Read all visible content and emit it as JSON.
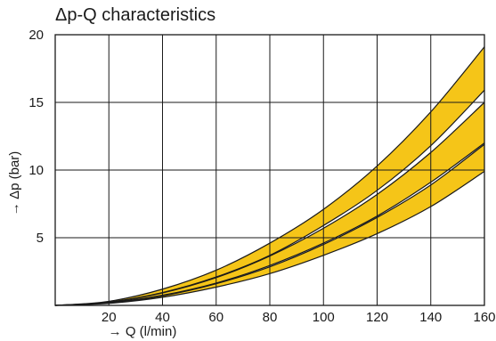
{
  "chart_data": {
    "type": "area",
    "title": "Δp-Q characteristics",
    "xlabel": "→ Q (l/min)",
    "ylabel": "→ Δp (bar)",
    "xlim": [
      0,
      160
    ],
    "ylim": [
      0,
      20
    ],
    "x_ticks": [
      "20",
      "40",
      "60",
      "80",
      "100",
      "120",
      "140",
      "160"
    ],
    "y_ticks": [
      "5",
      "10",
      "15",
      "20"
    ],
    "grid": true,
    "band_color": "#f5c518",
    "line_color": "#1a1a1a",
    "bands": [
      {
        "lower": [
          [
            0,
            0
          ],
          [
            20,
            0.25
          ],
          [
            40,
            0.95
          ],
          [
            60,
            2.1
          ],
          [
            80,
            3.7
          ],
          [
            100,
            5.9
          ],
          [
            120,
            8.5
          ],
          [
            140,
            11.8
          ],
          [
            160,
            15.9
          ]
        ],
        "upper": [
          [
            0,
            0
          ],
          [
            20,
            0.3
          ],
          [
            40,
            1.2
          ],
          [
            60,
            2.6
          ],
          [
            80,
            4.6
          ],
          [
            100,
            7.1
          ],
          [
            120,
            10.3
          ],
          [
            140,
            14.3
          ],
          [
            160,
            19.1
          ]
        ]
      },
      {
        "lower": [
          [
            0,
            0
          ],
          [
            20,
            0.2
          ],
          [
            40,
            0.75
          ],
          [
            60,
            1.65
          ],
          [
            80,
            2.95
          ],
          [
            100,
            4.6
          ],
          [
            120,
            6.6
          ],
          [
            140,
            9.1
          ],
          [
            160,
            12.0
          ]
        ],
        "upper": [
          [
            0,
            0
          ],
          [
            20,
            0.23
          ],
          [
            40,
            0.92
          ],
          [
            60,
            2.05
          ],
          [
            80,
            3.65
          ],
          [
            100,
            5.7
          ],
          [
            120,
            8.2
          ],
          [
            140,
            11.3
          ],
          [
            160,
            15.0
          ]
        ]
      },
      {
        "lower": [
          [
            0,
            0
          ],
          [
            20,
            0.15
          ],
          [
            40,
            0.6
          ],
          [
            60,
            1.35
          ],
          [
            80,
            2.35
          ],
          [
            100,
            3.7
          ],
          [
            120,
            5.3
          ],
          [
            140,
            7.3
          ],
          [
            160,
            9.9
          ]
        ],
        "upper": [
          [
            0,
            0
          ],
          [
            20,
            0.18
          ],
          [
            40,
            0.7
          ],
          [
            60,
            1.6
          ],
          [
            80,
            2.85
          ],
          [
            100,
            4.5
          ],
          [
            120,
            6.5
          ],
          [
            140,
            8.9
          ],
          [
            160,
            11.9
          ]
        ]
      }
    ]
  }
}
